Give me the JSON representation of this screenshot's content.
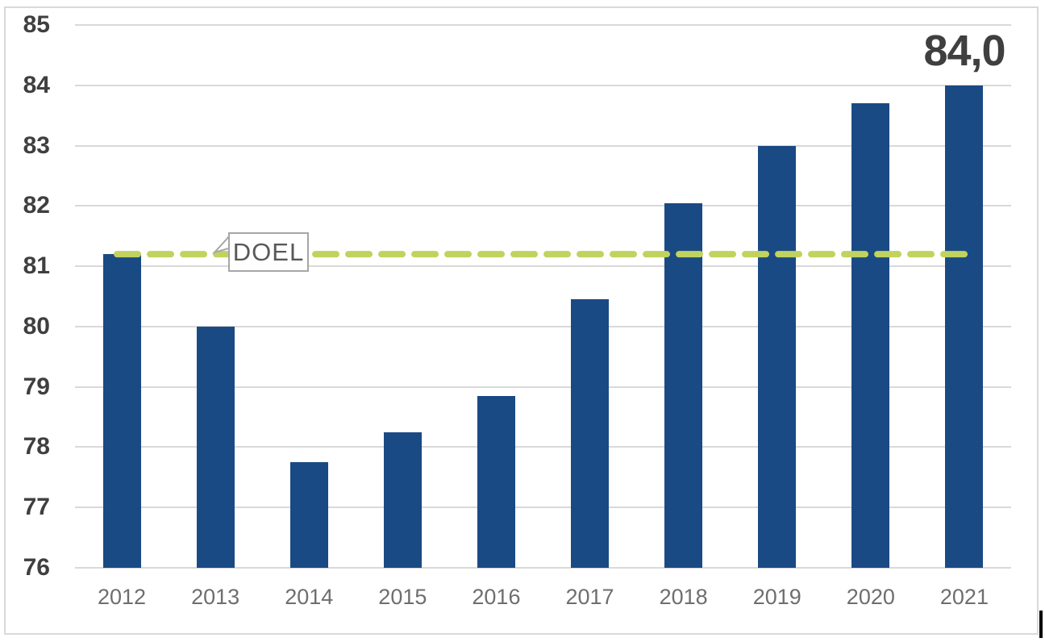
{
  "window": {
    "background": "#ffffff",
    "border_color": "#d9d9d9",
    "text_cursor_artifact": true
  },
  "chart_data": {
    "type": "bar",
    "title": "",
    "xlabel": "",
    "ylabel": "",
    "categories": [
      "2012",
      "2013",
      "2014",
      "2015",
      "2016",
      "2017",
      "2018",
      "2019",
      "2020",
      "2021"
    ],
    "values": [
      81.2,
      80.0,
      77.75,
      78.25,
      78.85,
      80.45,
      82.05,
      83.0,
      83.7,
      84.0
    ],
    "yticks": [
      76,
      77,
      78,
      79,
      80,
      81,
      82,
      83,
      84,
      85
    ],
    "ylim": [
      76,
      85
    ],
    "grid": "horizontal",
    "legend": "none",
    "bar_color": "#1a4a84",
    "target_line": {
      "label": "DOEL",
      "value": 81.2,
      "style": "dashed",
      "color": "#c1d25e"
    },
    "last_value_label": "84,0",
    "colors": {
      "gridline": "#d9d9d9",
      "y_tick_text": "#3f3f3f",
      "x_tick_text": "#6e6e6e",
      "data_label_text": "#3f3f3f",
      "callout_border": "#a6a6a6",
      "callout_text": "#595959"
    }
  }
}
